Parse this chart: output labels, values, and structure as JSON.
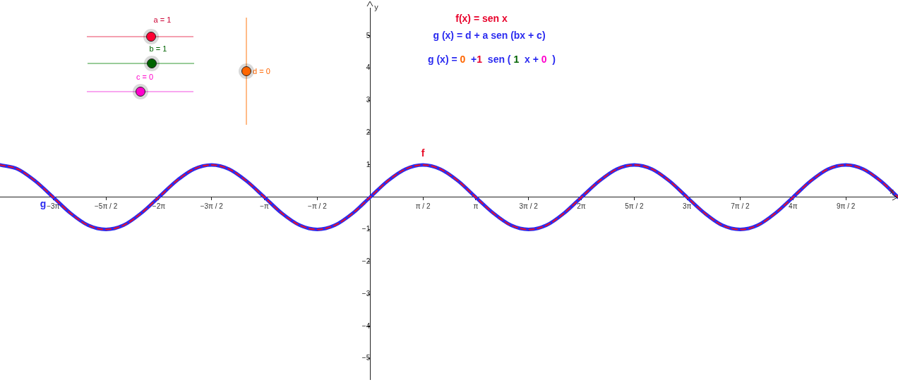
{
  "chart_data": {
    "type": "line",
    "x": [
      -11.0,
      -10.47,
      -9.95,
      -9.42,
      -8.9,
      -8.38,
      -7.85,
      -7.33,
      -6.81,
      -6.28,
      -5.76,
      -5.24,
      -4.71,
      -4.19,
      -3.67,
      -3.14,
      -2.62,
      -2.09,
      -1.57,
      -1.05,
      -0.52,
      0,
      0.52,
      1.05,
      1.57,
      2.09,
      2.62,
      3.14,
      3.67,
      4.19,
      4.71,
      5.24,
      5.76,
      6.28,
      6.81,
      7.33,
      7.85,
      8.38,
      8.9,
      9.42,
      9.95,
      10.47,
      11.0,
      11.52,
      12.04,
      12.57,
      13.09,
      13.61,
      14.14,
      14.66,
      15.18,
      15.69
    ],
    "series": [
      {
        "name": "g",
        "color": "#2a2af0",
        "line_style": "solid",
        "values": [
          1,
          0.87,
          0.5,
          0,
          -0.5,
          -0.87,
          -1,
          -0.87,
          -0.5,
          0,
          0.5,
          0.87,
          1,
          0.87,
          0.5,
          0,
          -0.5,
          -0.87,
          -1,
          -0.87,
          -0.5,
          0,
          0.5,
          0.87,
          1,
          0.87,
          0.5,
          0,
          -0.5,
          -0.87,
          -1,
          -0.87,
          -0.5,
          0,
          0.5,
          0.87,
          1,
          0.87,
          0.5,
          0,
          -0.5,
          -0.87,
          -1,
          -0.87,
          -0.5,
          0,
          0.5,
          0.87,
          1,
          0.87,
          0.5,
          0
        ]
      },
      {
        "name": "f",
        "color": "#e8102a",
        "line_style": "dashed",
        "values": [
          1,
          0.87,
          0.5,
          0,
          -0.5,
          -0.87,
          -1,
          -0.87,
          -0.5,
          0,
          0.5,
          0.87,
          1,
          0.87,
          0.5,
          0,
          -0.5,
          -0.87,
          -1,
          -0.87,
          -0.5,
          0,
          0.5,
          0.87,
          1,
          0.87,
          0.5,
          0,
          -0.5,
          -0.87,
          -1,
          -0.87,
          -0.5,
          0,
          0.5,
          0.87,
          1,
          0.87,
          0.5,
          0,
          -0.5,
          -0.87,
          -1,
          -0.87,
          -0.5,
          0,
          0.5,
          0.87,
          1,
          0.87,
          0.5,
          0
        ]
      }
    ],
    "xlabel": "x",
    "ylabel": "y",
    "xlim": [
      -11,
      15.69
    ],
    "ylim": [
      -5.64,
      5.87
    ],
    "xticks": [
      {
        "value": -9.42,
        "label": "−3π"
      },
      {
        "value": -7.85,
        "label": "−5π / 2"
      },
      {
        "value": -6.28,
        "label": "−2π"
      },
      {
        "value": -4.71,
        "label": "−3π / 2"
      },
      {
        "value": -3.14,
        "label": "−π"
      },
      {
        "value": -1.57,
        "label": "−π / 2"
      },
      {
        "value": 1.57,
        "label": "π / 2"
      },
      {
        "value": 3.14,
        "label": "π"
      },
      {
        "value": 4.71,
        "label": "3π / 2"
      },
      {
        "value": 6.28,
        "label": "2π"
      },
      {
        "value": 7.85,
        "label": "5π / 2"
      },
      {
        "value": 9.42,
        "label": "3π"
      },
      {
        "value": 11.0,
        "label": "7π / 2"
      },
      {
        "value": 12.57,
        "label": "4π"
      },
      {
        "value": 14.14,
        "label": "9π / 2"
      }
    ],
    "yticks": [
      {
        "value": -5,
        "label": "−5"
      },
      {
        "value": -4,
        "label": "−4"
      },
      {
        "value": -3,
        "label": "−3"
      },
      {
        "value": -2,
        "label": "−2"
      },
      {
        "value": -1,
        "label": "−1"
      },
      1,
      2,
      3,
      4,
      5
    ],
    "grid": false,
    "legend": false,
    "marker": "none",
    "annotations": [
      "f(x) = sen x",
      "g (x) = d + a sen (bx + c)",
      "g (x) = 0  +1  sen ( 1  x + 0  )",
      "a = 1",
      "b = 1",
      "c = 0",
      "d = 0"
    ]
  }
}
